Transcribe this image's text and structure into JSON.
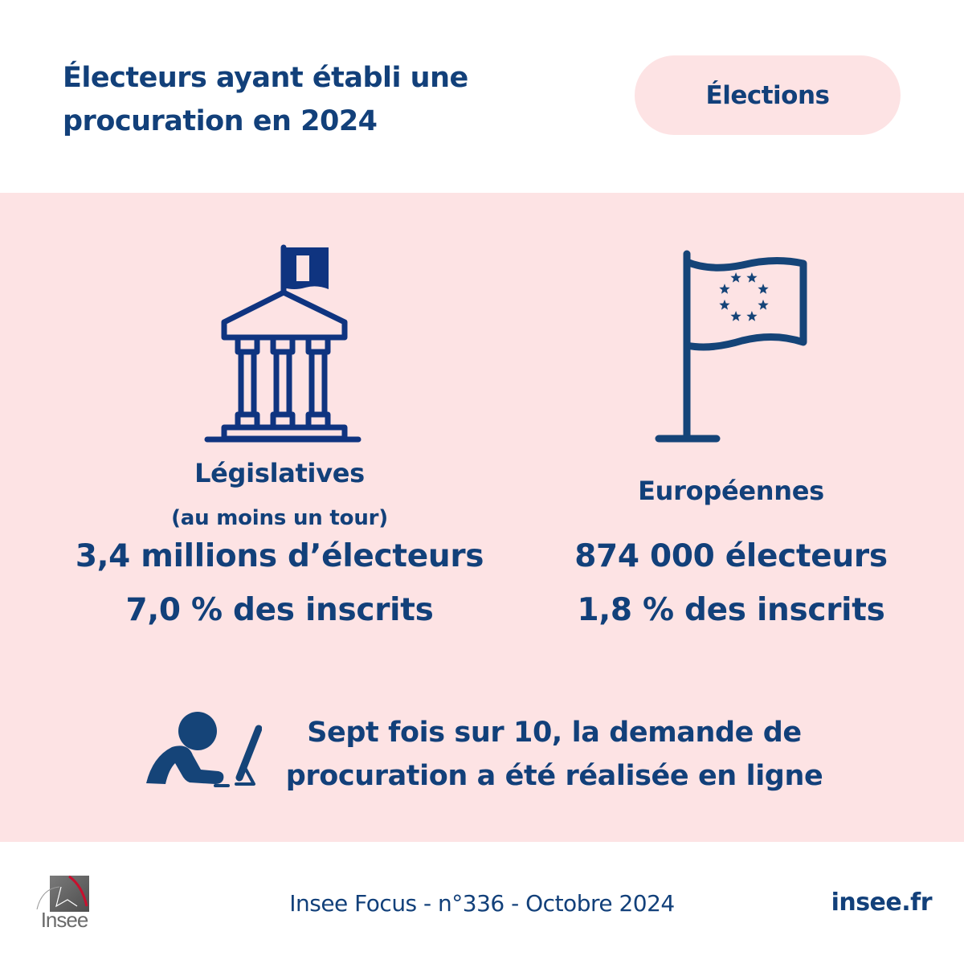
{
  "header": {
    "title_line1": "Électeurs ayant établi une",
    "title_line2": "procuration en 2024",
    "tag": "Élections"
  },
  "legislatives": {
    "icon": "government-building-icon",
    "title": "Législatives",
    "subtitle": "(au moins un tour)",
    "voters": "3,4 millions d’électeurs",
    "share": "7,0 % des inscrits"
  },
  "europeennes": {
    "icon": "eu-flag-icon",
    "title": "Européennes",
    "voters": "874 000 électeurs",
    "share": "1,8 % des inscrits"
  },
  "online": {
    "icon": "person-at-computer-icon",
    "line1": "Sept fois sur 10, la demande de",
    "line2": "procuration a été réalisée en ligne"
  },
  "footer": {
    "logo_text": "Insee",
    "publication": "Insee Focus - n°336 - Octobre 2024",
    "site": "insee.fr"
  },
  "colors": {
    "primary": "#12407a",
    "background_pink": "#fde3e4",
    "icon_navy": "#0f3480"
  }
}
